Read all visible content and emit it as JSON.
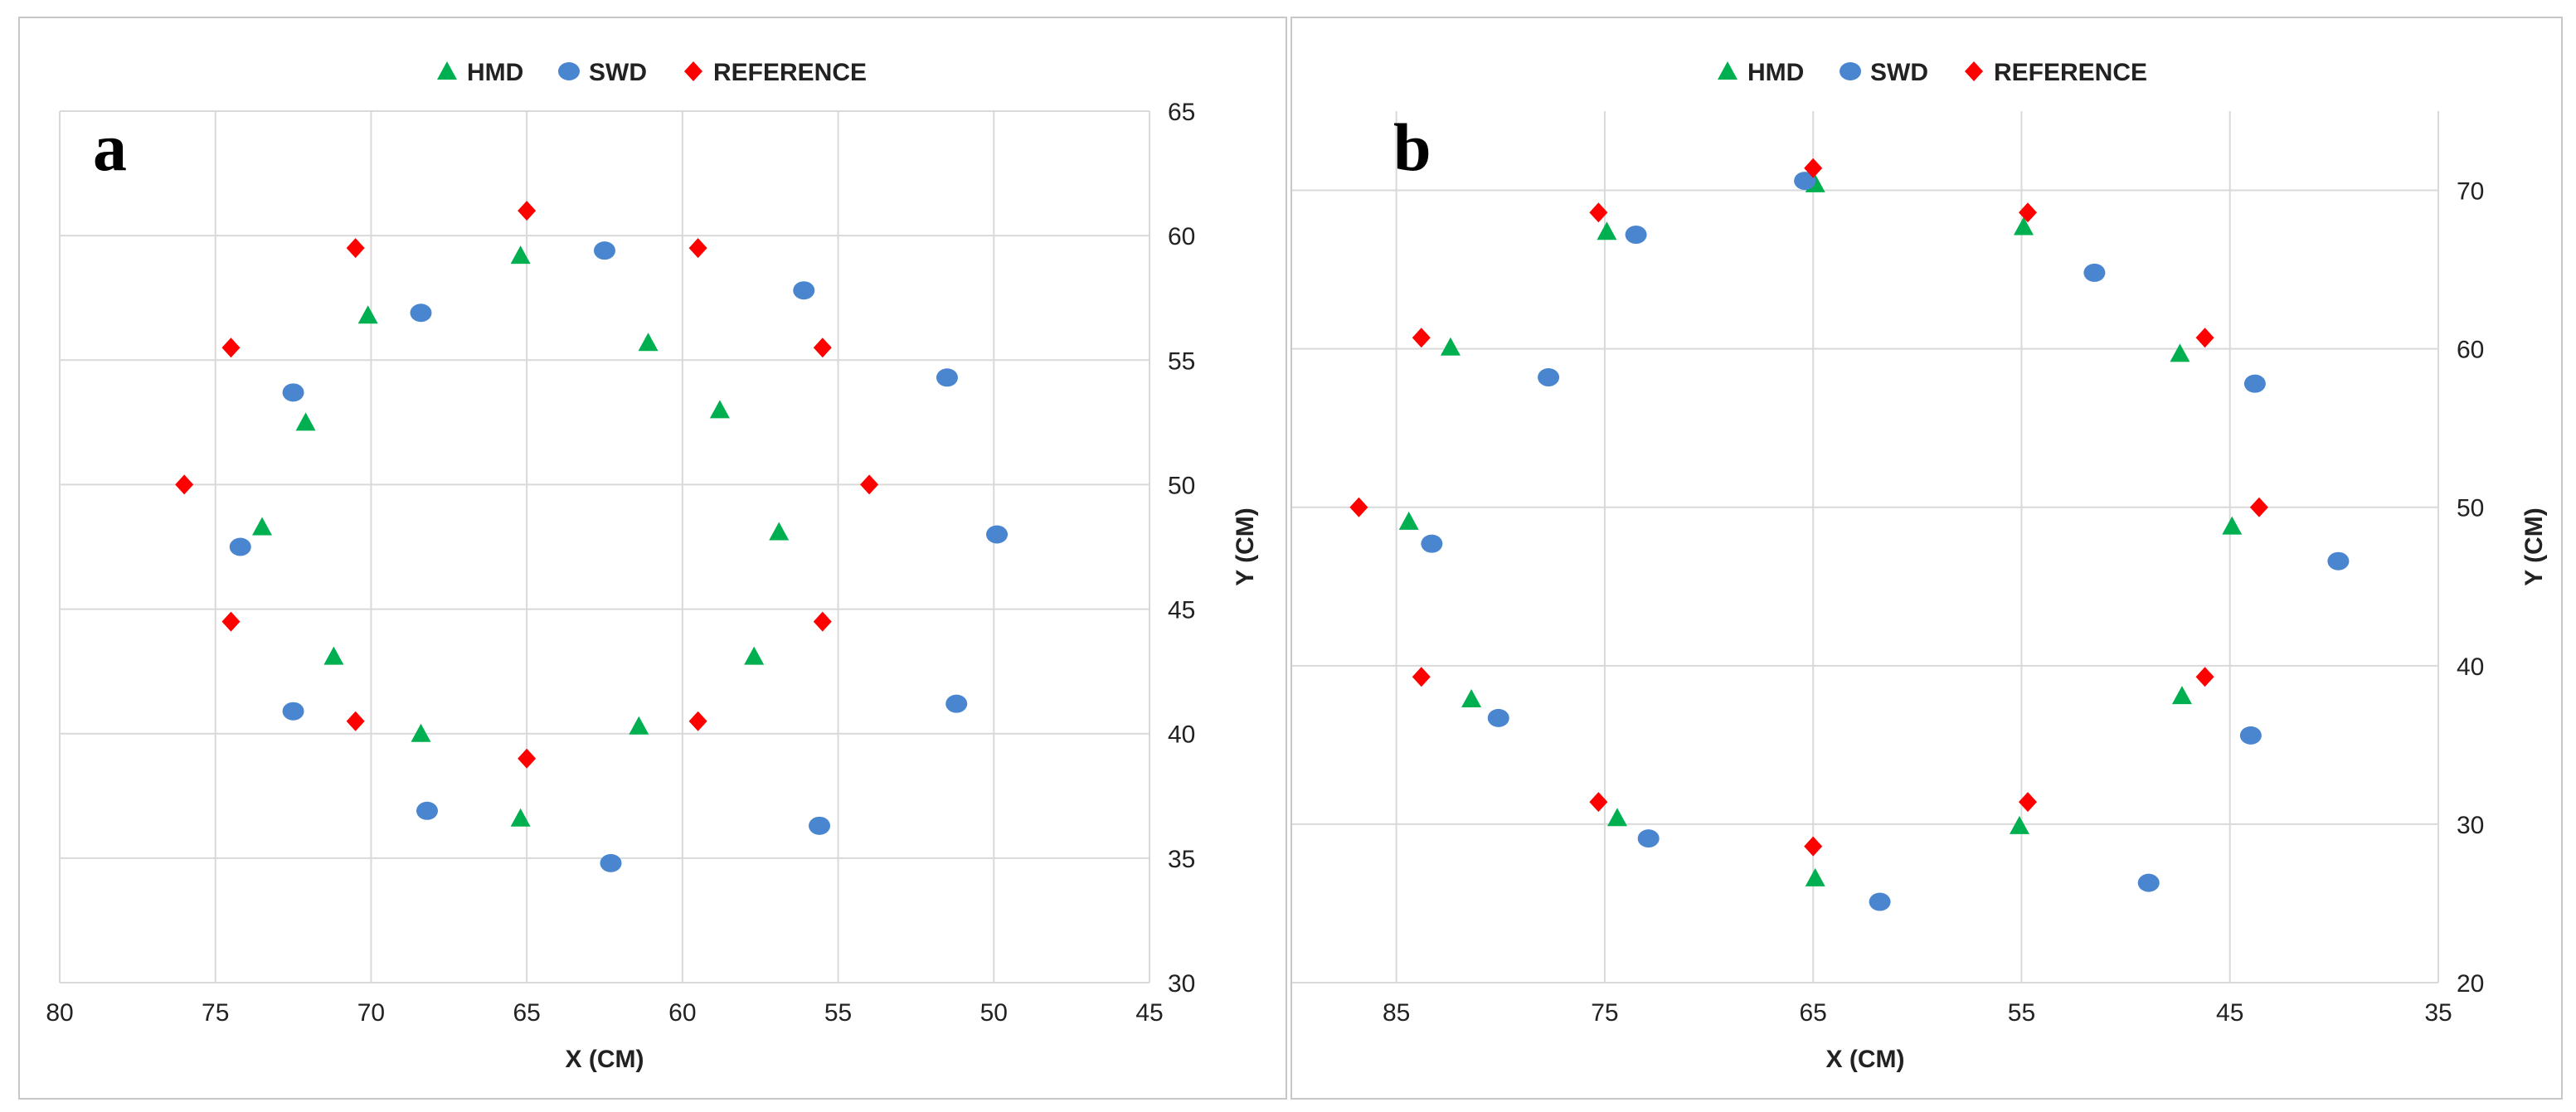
{
  "colors": {
    "HMD": "#00b050",
    "SWD": "#4a86d0",
    "REFERENCE": "#ff0000"
  },
  "legend": [
    {
      "name": "HMD",
      "marker": "triangle"
    },
    {
      "name": "SWD",
      "marker": "circle"
    },
    {
      "name": "REFERENCE",
      "marker": "diamond"
    }
  ],
  "chart_data": [
    {
      "panel_label": "a",
      "type": "scatter",
      "xlabel": "X (CM)",
      "ylabel": "Y (CM)",
      "xlim": [
        80,
        45
      ],
      "ylim": [
        30,
        65
      ],
      "x_ticks": [
        80,
        75,
        70,
        65,
        60,
        55,
        50,
        45
      ],
      "y_ticks": [
        30,
        35,
        40,
        45,
        50,
        55,
        60,
        65
      ],
      "x_reversed": true,
      "series": [
        {
          "name": "HMD",
          "points": [
            [
              65.2,
              59.2
            ],
            [
              70.1,
              56.8
            ],
            [
              61.1,
              55.7
            ],
            [
              58.8,
              53.0
            ],
            [
              72.1,
              52.5
            ],
            [
              73.5,
              48.3
            ],
            [
              56.9,
              48.1
            ],
            [
              71.2,
              43.1
            ],
            [
              57.7,
              43.1
            ],
            [
              68.4,
              40.0
            ],
            [
              61.4,
              40.3
            ],
            [
              65.2,
              36.6
            ]
          ]
        },
        {
          "name": "SWD",
          "points": [
            [
              62.5,
              59.4
            ],
            [
              68.4,
              56.9
            ],
            [
              56.1,
              57.8
            ],
            [
              72.5,
              53.7
            ],
            [
              51.5,
              54.3
            ],
            [
              74.2,
              47.5
            ],
            [
              49.9,
              48.0
            ],
            [
              72.5,
              40.9
            ],
            [
              51.2,
              41.2
            ],
            [
              68.2,
              36.9
            ],
            [
              55.6,
              36.3
            ],
            [
              62.3,
              34.8
            ]
          ]
        },
        {
          "name": "REFERENCE",
          "points": [
            [
              65.0,
              61.0
            ],
            [
              70.5,
              59.5
            ],
            [
              59.5,
              59.5
            ],
            [
              74.5,
              55.5
            ],
            [
              55.5,
              55.5
            ],
            [
              76.0,
              50.0
            ],
            [
              54.0,
              50.0
            ],
            [
              74.5,
              44.5
            ],
            [
              55.5,
              44.5
            ],
            [
              70.5,
              40.5
            ],
            [
              59.5,
              40.5
            ],
            [
              65.0,
              39.0
            ]
          ]
        }
      ]
    },
    {
      "panel_label": "b",
      "type": "scatter",
      "xlabel": "X (CM)",
      "ylabel": "Y (CM)",
      "xlim": [
        90,
        35
      ],
      "ylim": [
        20,
        75
      ],
      "x_ticks": [
        85,
        75,
        65,
        55,
        45,
        35
      ],
      "y_ticks": [
        20,
        30,
        40,
        50,
        60,
        70
      ],
      "x_reversed": true,
      "series": [
        {
          "name": "HMD",
          "points": [
            [
              64.9,
              70.4
            ],
            [
              74.9,
              67.4
            ],
            [
              54.9,
              67.7
            ],
            [
              82.4,
              60.1
            ],
            [
              47.4,
              59.7
            ],
            [
              84.4,
              49.1
            ],
            [
              44.9,
              48.8
            ],
            [
              81.4,
              37.9
            ],
            [
              47.3,
              38.1
            ],
            [
              74.4,
              30.4
            ],
            [
              55.1,
              29.9
            ],
            [
              64.9,
              26.6
            ]
          ]
        },
        {
          "name": "SWD",
          "points": [
            [
              65.4,
              70.6
            ],
            [
              73.5,
              67.2
            ],
            [
              51.5,
              64.8
            ],
            [
              77.7,
              58.2
            ],
            [
              43.8,
              57.8
            ],
            [
              83.3,
              47.7
            ],
            [
              39.8,
              46.6
            ],
            [
              80.1,
              36.7
            ],
            [
              44.0,
              35.6
            ],
            [
              72.9,
              29.1
            ],
            [
              48.9,
              26.3
            ],
            [
              61.8,
              25.1
            ]
          ]
        },
        {
          "name": "REFERENCE",
          "points": [
            [
              65.0,
              71.4
            ],
            [
              75.3,
              68.6
            ],
            [
              54.7,
              68.6
            ],
            [
              83.8,
              60.7
            ],
            [
              46.2,
              60.7
            ],
            [
              86.8,
              50.0
            ],
            [
              43.6,
              50.0
            ],
            [
              83.8,
              39.3
            ],
            [
              46.2,
              39.3
            ],
            [
              75.3,
              31.4
            ],
            [
              54.7,
              31.4
            ],
            [
              65.0,
              28.6
            ]
          ]
        }
      ]
    }
  ]
}
